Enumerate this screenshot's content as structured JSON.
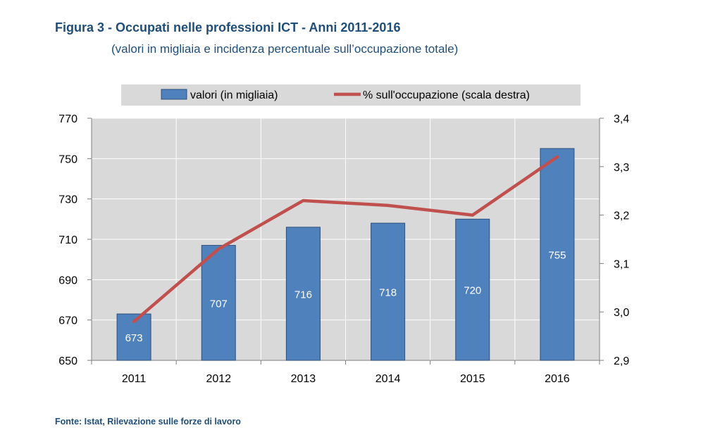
{
  "header": {
    "title": "Figura 3 - Occupati nelle professioni ICT - Anni 2011-2016",
    "subtitle": "(valori in migliaia e incidenza percentuale sull’occupazione totale)"
  },
  "footer": {
    "source": "Fonte: Istat, Rilevazione sulle forze di lavoro"
  },
  "colors": {
    "bar": "#4f81bd",
    "bar_border": "#2e4f7a",
    "line": "#c0504d",
    "plot_bg": "#d9d9d9",
    "legend_bg": "#d9d9d9",
    "title": "#1f4e79"
  },
  "chart_data": {
    "type": "bar",
    "categories": [
      "2011",
      "2012",
      "2013",
      "2014",
      "2015",
      "2016"
    ],
    "series": [
      {
        "name": "valori (in migliaia)",
        "type": "bar",
        "axis": "left",
        "values": [
          673,
          707,
          716,
          718,
          720,
          755
        ],
        "data_labels": [
          "673",
          "707",
          "716",
          "718",
          "720",
          "755"
        ]
      },
      {
        "name": "% sull'occupazione (scala destra)",
        "type": "line",
        "axis": "right",
        "values": [
          2.98,
          3.13,
          3.23,
          3.22,
          3.2,
          3.32
        ]
      }
    ],
    "y_left": {
      "lim": [
        650,
        770
      ],
      "ticks": [
        "650",
        "670",
        "690",
        "710",
        "730",
        "750",
        "770"
      ]
    },
    "y_right": {
      "lim": [
        2.9,
        3.4
      ],
      "ticks": [
        "2,9",
        "3,0",
        "3,1",
        "3,2",
        "3,3",
        "3,4"
      ]
    },
    "grid": true,
    "legend_position": "top"
  }
}
